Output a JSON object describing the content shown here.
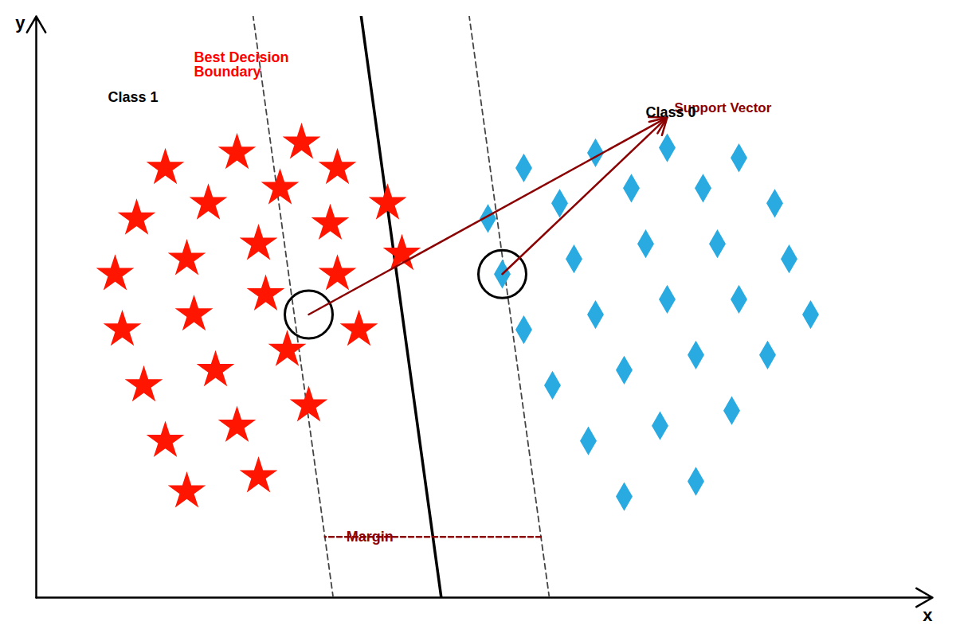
{
  "chart_data": {
    "type": "scatter",
    "xlabel": "x",
    "ylabel": "y",
    "xlim": [
      0,
      12.5
    ],
    "ylim": [
      0,
      11.5
    ],
    "xticks": [],
    "yticks": [],
    "tick_labels": false,
    "grid": false,
    "series": [
      {
        "name": "Class 1",
        "color": "#ff1500",
        "marker": "star",
        "label_at": [
          1.0,
          9.8
        ],
        "x": [
          1.8,
          2.8,
          3.7,
          1.4,
          2.4,
          3.4,
          4.2,
          1.1,
          2.1,
          3.1,
          4.1,
          4.9,
          1.2,
          2.2,
          3.2,
          4.2,
          5.1,
          1.5,
          2.5,
          3.5,
          4.5,
          1.8,
          2.8,
          3.8,
          2.1,
          3.1
        ],
        "y": [
          8.5,
          8.8,
          9.0,
          7.5,
          7.8,
          8.1,
          8.5,
          6.4,
          6.7,
          7.0,
          7.4,
          7.8,
          5.3,
          5.6,
          6.0,
          6.4,
          6.8,
          4.2,
          4.5,
          4.9,
          5.3,
          3.1,
          3.4,
          3.8,
          2.1,
          2.4
        ]
      },
      {
        "name": "Class 0",
        "color": "#29abe2",
        "marker": "diamond",
        "label_at": [
          8.5,
          9.5
        ],
        "x": [
          6.8,
          7.8,
          8.8,
          9.8,
          6.3,
          7.3,
          8.3,
          9.3,
          10.3,
          6.5,
          7.5,
          8.5,
          9.5,
          10.5,
          6.8,
          7.8,
          8.8,
          9.8,
          10.8,
          7.2,
          8.2,
          9.2,
          10.2,
          7.7,
          8.7,
          9.7,
          8.2,
          9.2
        ],
        "y": [
          8.5,
          8.8,
          8.9,
          8.7,
          7.5,
          7.8,
          8.1,
          8.1,
          7.8,
          6.4,
          6.7,
          7.0,
          7.0,
          6.7,
          5.3,
          5.6,
          5.9,
          5.9,
          5.6,
          4.2,
          4.5,
          4.8,
          4.8,
          3.1,
          3.4,
          3.7,
          2.0,
          2.3
        ]
      }
    ],
    "lines": [
      {
        "color": "#444444",
        "line_style": "dashed",
        "x": [
          7.155597,
          6.039092
        ],
        "y": [
          0,
          11.5
        ]
      },
      {
        "color": "#444444",
        "line_style": "dashed",
        "x": [
          4.141491,
          3.024986
        ],
        "y": [
          0,
          11.5
        ]
      },
      {
        "name": "Best Decision\nBoundary",
        "color": "#000000",
        "line_style": "solid",
        "label_color": "red",
        "label_at": [
          2.2,
          10.8
        ],
        "x": [
          5.648544,
          4.532039
        ],
        "y": [
          0,
          11.5
        ]
      },
      {
        "name": "Margin",
        "color": "#8b0000",
        "line_style": "dashed",
        "label_color": "#8b0000",
        "label_at": [
          4.324986,
          1.2
        ],
        "x": [
          7.039092,
          4.024986
        ],
        "y": [
          1.2,
          1.2
        ]
      }
    ],
    "support_vectors": {
      "name": "Support Vector",
      "color": "#8b0000",
      "points": [
        [
          3.8,
          5.6
        ],
        [
          6.5,
          6.4
        ]
      ],
      "arrow_to": [
        8.8,
        9.5
      ],
      "label_at": [
        8.9,
        9.6
      ]
    }
  }
}
